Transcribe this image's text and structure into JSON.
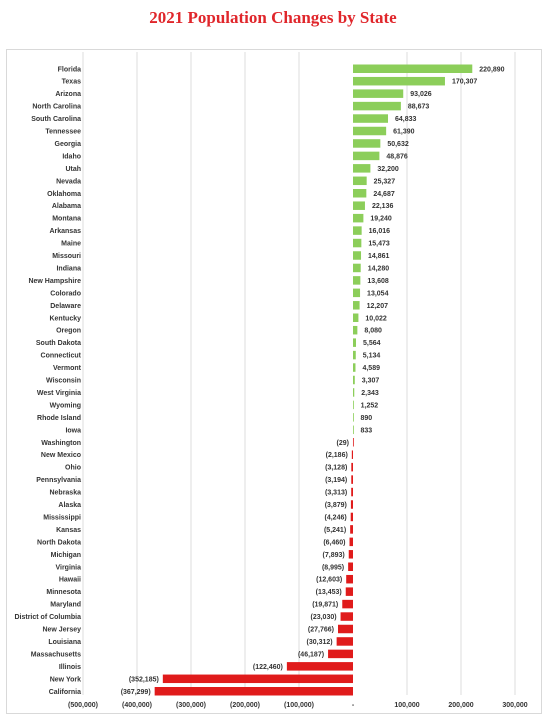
{
  "title": "2021 Population Changes by State",
  "colors": {
    "positive": "#8cce5a",
    "negative": "#e01b1b",
    "grid": "#dcdcdc",
    "title": "#e0262b"
  },
  "chart_data": {
    "type": "bar",
    "orientation": "horizontal",
    "title": "2021 Population Changes by State",
    "xlabel": "",
    "ylabel": "",
    "xlim": [
      -500000,
      300000
    ],
    "x_ticks": [
      -500000,
      -400000,
      -300000,
      -200000,
      -100000,
      0,
      100000,
      200000,
      300000
    ],
    "x_tick_labels": [
      "(500,000)",
      "(400,000)",
      "(300,000)",
      "(200,000)",
      "(100,000)",
      "-",
      "100,000",
      "200,000",
      "300,000"
    ],
    "grid": "vertical",
    "categories": [
      "Florida",
      "Texas",
      "Arizona",
      "North Carolina",
      "South Carolina",
      "Tennessee",
      "Georgia",
      "Idaho",
      "Utah",
      "Nevada",
      "Oklahoma",
      "Alabama",
      "Montana",
      "Arkansas",
      "Maine",
      "Missouri",
      "Indiana",
      "New Hampshire",
      "Colorado",
      "Delaware",
      "Kentucky",
      "Oregon",
      "South Dakota",
      "Connecticut",
      "Vermont",
      "Wisconsin",
      "West Virginia",
      "Wyoming",
      "Rhode Island",
      "Iowa",
      "Washington",
      "New Mexico",
      "Ohio",
      "Pennsylvania",
      "Nebraska",
      "Alaska",
      "Mississippi",
      "Kansas",
      "North Dakota",
      "Michigan",
      "Virginia",
      "Hawaii",
      "Minnesota",
      "Maryland",
      "District of Columbia",
      "New Jersey",
      "Louisiana",
      "Massachusetts",
      "Illinois",
      "New York",
      "California"
    ],
    "values": [
      220890,
      170307,
      93026,
      88673,
      64833,
      61390,
      50632,
      48876,
      32200,
      25327,
      24687,
      22136,
      19240,
      16016,
      15473,
      14861,
      14280,
      13608,
      13054,
      12207,
      10022,
      8080,
      5564,
      5134,
      4589,
      3307,
      2343,
      1252,
      890,
      833,
      -29,
      -2186,
      -3128,
      -3194,
      -3313,
      -3879,
      -4246,
      -5241,
      -6460,
      -7893,
      -8995,
      -12603,
      -13453,
      -19871,
      -23030,
      -27766,
      -30312,
      -46187,
      -122460,
      -352185,
      -367299
    ],
    "data_labels": [
      "220,890",
      "170,307",
      "93,026",
      "88,673",
      "64,833",
      "61,390",
      "50,632",
      "48,876",
      "32,200",
      "25,327",
      "24,687",
      "22,136",
      "19,240",
      "16,016",
      "15,473",
      "14,861",
      "14,280",
      "13,608",
      "13,054",
      "12,207",
      "10,022",
      "8,080",
      "5,564",
      "5,134",
      "4,589",
      "3,307",
      "2,343",
      "1,252",
      "890",
      "833",
      "(29)",
      "(2,186)",
      "(3,128)",
      "(3,194)",
      "(3,313)",
      "(3,879)",
      "(4,246)",
      "(5,241)",
      "(6,460)",
      "(7,893)",
      "(8,995)",
      "(12,603)",
      "(13,453)",
      "(19,871)",
      "(23,030)",
      "(27,766)",
      "(30,312)",
      "(46,187)",
      "(122,460)",
      "(352,185)",
      "(367,299)"
    ]
  }
}
